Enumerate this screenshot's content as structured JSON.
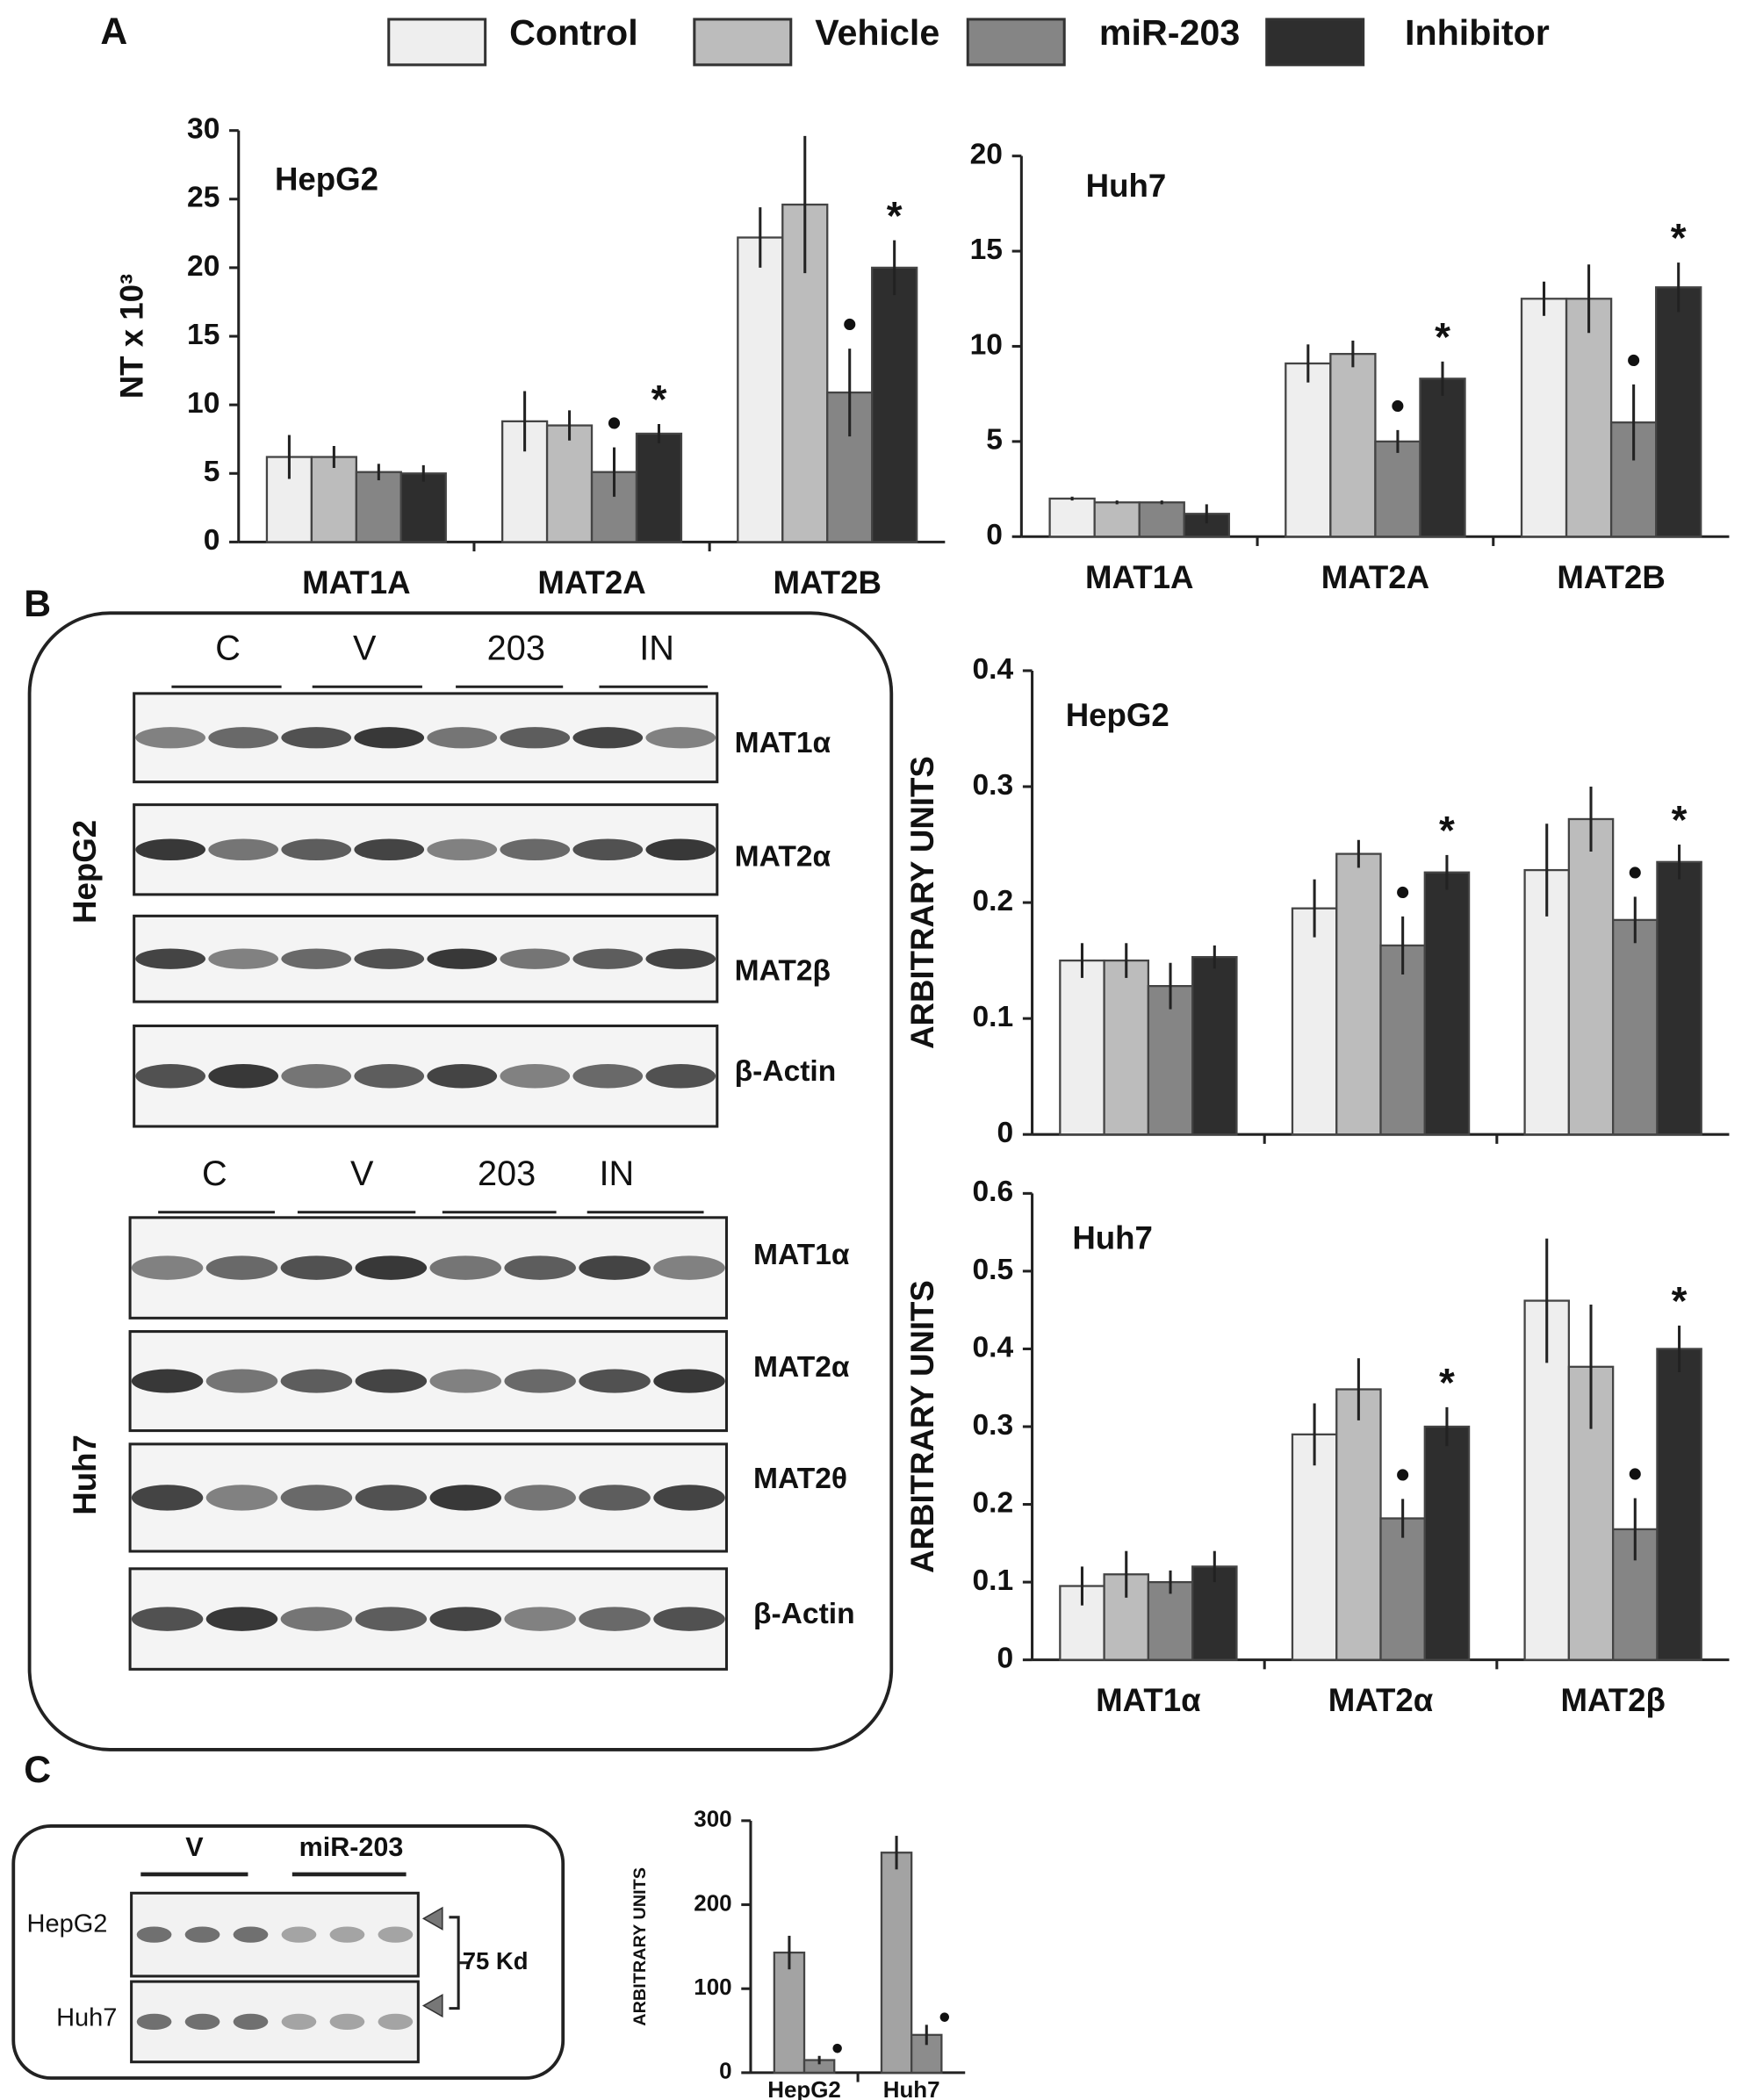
{
  "panel_labels": [
    "A",
    "B",
    "C"
  ],
  "legend": [
    {
      "name": "Control",
      "color": "#eeeeee"
    },
    {
      "name": "Vehicle",
      "color": "#bcbcbc"
    },
    {
      "name": "miR-203",
      "color": "#858585"
    },
    {
      "name": "Inhibitor",
      "color": "#2e2e2e"
    }
  ],
  "chart_data": [
    {
      "type": "bar",
      "title": "HepG2",
      "ylabel": "NT x 10³",
      "categories": [
        "MAT1A",
        "MAT2A",
        "MAT2B"
      ],
      "ylim": [
        0,
        30
      ],
      "yticks": [
        0,
        5,
        10,
        15,
        20,
        25,
        30
      ],
      "series": [
        {
          "values": [
            6.2,
            8.8,
            22.2
          ],
          "errors": [
            1.6,
            2.2,
            2.2
          ],
          "markers": [
            null,
            null,
            null
          ]
        },
        {
          "values": [
            6.2,
            8.5,
            24.6
          ],
          "errors": [
            0.8,
            1.1,
            5
          ],
          "markers": [
            null,
            null,
            null
          ]
        },
        {
          "values": [
            5.1,
            5.1,
            10.9
          ],
          "errors": [
            0.6,
            1.8,
            3.2
          ],
          "markers": [
            null,
            "•",
            "•"
          ]
        },
        {
          "values": [
            5.0,
            7.9,
            20.0
          ],
          "errors": [
            0.6,
            0.7,
            2
          ],
          "markers": [
            null,
            "*",
            "*"
          ]
        }
      ]
    },
    {
      "type": "bar",
      "title": "Huh7",
      "categories": [
        "MAT1A",
        "MAT2A",
        "MAT2B"
      ],
      "ylim": [
        0,
        20
      ],
      "yticks": [
        0,
        5,
        10,
        15,
        20
      ],
      "series": [
        {
          "values": [
            2.0,
            9.1,
            12.5
          ],
          "errors": [
            0.1,
            1.0,
            0.9
          ],
          "markers": [
            null,
            null,
            null
          ]
        },
        {
          "values": [
            1.8,
            9.6,
            12.5
          ],
          "errors": [
            0.1,
            0.7,
            1.8
          ],
          "markers": [
            null,
            null,
            null
          ]
        },
        {
          "values": [
            1.8,
            5.0,
            6.0
          ],
          "errors": [
            0.1,
            0.6,
            2
          ],
          "markers": [
            null,
            "•",
            "•"
          ]
        },
        {
          "values": [
            1.2,
            8.3,
            13.1
          ],
          "errors": [
            0.5,
            0.9,
            1.3
          ],
          "markers": [
            null,
            "*",
            "*"
          ]
        }
      ]
    },
    {
      "type": "bar",
      "title": "HepG2",
      "ylabel": "ARBITRARY UNITS",
      "categories": [
        null,
        null,
        null
      ],
      "ylim": [
        0,
        0.4
      ],
      "yticks": [
        0,
        0.1,
        0.2,
        0.3,
        0.4
      ],
      "series": [
        {
          "values": [
            0.15,
            0.195,
            0.228
          ],
          "errors": [
            0.015,
            0.025,
            0.04
          ],
          "markers": [
            null,
            null,
            null
          ]
        },
        {
          "values": [
            0.15,
            0.242,
            0.272
          ],
          "errors": [
            0.015,
            0.012,
            0.028
          ],
          "markers": [
            null,
            null,
            null
          ]
        },
        {
          "values": [
            0.128,
            0.163,
            0.185
          ],
          "errors": [
            0.02,
            0.025,
            0.02
          ],
          "markers": [
            null,
            "•",
            "•"
          ]
        },
        {
          "values": [
            0.153,
            0.226,
            0.235
          ],
          "errors": [
            0.01,
            0.015,
            0.015
          ],
          "markers": [
            null,
            "*",
            "*"
          ]
        }
      ]
    },
    {
      "type": "bar",
      "title": "Huh7",
      "ylabel": "ARBITRARY UNITS",
      "categories": [
        "MAT1α",
        "MAT2α",
        "MAT2β"
      ],
      "ylim": [
        0,
        0.6
      ],
      "yticks": [
        0,
        0.1,
        0.2,
        0.3,
        0.4,
        0.5,
        0.6
      ],
      "series": [
        {
          "values": [
            0.095,
            0.29,
            0.462
          ],
          "errors": [
            0.025,
            0.04,
            0.08
          ],
          "markers": [
            null,
            null,
            null
          ]
        },
        {
          "values": [
            0.11,
            0.348,
            0.377
          ],
          "errors": [
            0.03,
            0.04,
            0.08
          ],
          "markers": [
            null,
            null,
            null
          ]
        },
        {
          "values": [
            0.1,
            0.182,
            0.168
          ],
          "errors": [
            0.015,
            0.025,
            0.04
          ],
          "markers": [
            null,
            "•",
            "•"
          ]
        },
        {
          "values": [
            0.12,
            0.3,
            0.4
          ],
          "errors": [
            0.02,
            0.025,
            0.03
          ],
          "markers": [
            null,
            "*",
            "*"
          ]
        }
      ]
    },
    {
      "type": "bar",
      "ylabel": "ARBITRARY UNITS",
      "categories": [
        "HepG2",
        "Huh7"
      ],
      "ylim": [
        0,
        300
      ],
      "yticks": [
        0,
        100,
        200,
        300
      ],
      "series": [
        {
          "color": "#a3a3a3",
          "values": [
            143,
            262
          ],
          "errors": [
            20,
            20
          ],
          "markers": [
            null,
            null
          ]
        },
        {
          "color": "#8c8c8c",
          "values": [
            15,
            45
          ],
          "errors": [
            5,
            12
          ],
          "markers": [
            "•",
            "•"
          ]
        }
      ]
    }
  ],
  "blots": {
    "hepg2": {
      "side": "HepG2",
      "lanes": [
        "C",
        "V",
        "203",
        "IN"
      ],
      "bands": [
        "MAT1α",
        "MAT2α",
        "MAT2β",
        "β-Actin"
      ]
    },
    "huh7": {
      "side": "Huh7",
      "lanes": [
        "C",
        "V",
        "203",
        "IN"
      ],
      "bands": [
        "MAT1α",
        "MAT2α",
        "MAT2θ",
        "β-Actin"
      ]
    },
    "c": {
      "lanes": [
        "V",
        "miR-203"
      ],
      "rows": [
        "HepG2",
        "Huh7"
      ],
      "size": "75 Kd"
    }
  }
}
